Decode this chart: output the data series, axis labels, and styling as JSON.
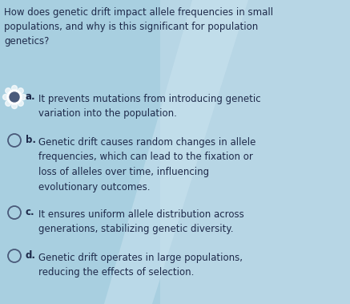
{
  "bg_color": "#a8cfe0",
  "bg_color_right": "#b8d8e8",
  "question": "How does genetic drift impact allele frequencies in small\npopulations, and why is this significant for population\ngenetics?",
  "options": [
    {
      "label": "a.",
      "text": "It prevents mutations from introducing genetic\nvariation into the population.",
      "has_filled_radio": true
    },
    {
      "label": "b.",
      "text": "Genetic drift causes random changes in allele\nfrequencies, which can lead to the fixation or\nloss of alleles over time, influencing\nevolutionary outcomes.",
      "has_filled_radio": false
    },
    {
      "label": "c.",
      "text": "It ensures uniform allele distribution across\ngenerations, stabilizing genetic diversity.",
      "has_filled_radio": false
    },
    {
      "label": "d.",
      "text": "Genetic drift operates in large populations,\nreducing the effects of selection.",
      "has_filled_radio": false
    }
  ],
  "question_fontsize": 8.5,
  "option_fontsize": 8.5,
  "text_color": "#1e2a4a",
  "radio_color": "#4a5a7a",
  "figsize": [
    4.37,
    3.79
  ],
  "dpi": 100
}
